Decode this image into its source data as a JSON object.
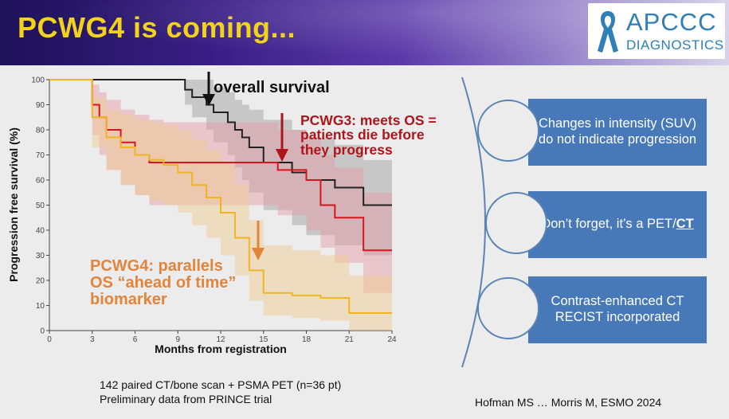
{
  "header": {
    "title": "PCWG4 is coming...",
    "logo_line1": "APCCC",
    "logo_line2": "DIAGNOSTICS"
  },
  "chart_data": {
    "type": "line",
    "xlabel": "Months from registration",
    "ylabel": "Progression free survival (%)",
    "xlim": [
      0,
      24
    ],
    "ylim": [
      0,
      100
    ],
    "xticks": [
      0,
      3,
      6,
      9,
      12,
      15,
      18,
      21,
      24
    ],
    "yticks": [
      0,
      10,
      20,
      30,
      40,
      50,
      60,
      70,
      80,
      90,
      100
    ],
    "series": [
      {
        "color": "#222222",
        "band": "#9c9c9c",
        "x": [
          0,
          9,
          9.5,
          10,
          11,
          11.5,
          12.5,
          13,
          13.5,
          14,
          15,
          16,
          17,
          18,
          20,
          22,
          24
        ],
        "y": [
          100,
          100,
          96,
          93,
          90,
          87,
          83,
          80,
          77,
          73,
          67,
          67,
          63,
          60,
          57,
          50,
          50
        ],
        "lo": [
          100,
          100,
          90,
          85,
          80,
          75,
          70,
          65,
          60,
          55,
          48,
          48,
          42,
          38,
          34,
          30,
          30
        ],
        "hi": [
          100,
          100,
          100,
          100,
          100,
          97,
          95,
          92,
          90,
          88,
          84,
          84,
          80,
          77,
          74,
          68,
          68
        ]
      },
      {
        "color": "#d9141c",
        "band": "#e69aa3",
        "x": [
          0,
          2.5,
          3,
          3.5,
          4,
          5,
          6,
          7,
          8,
          10,
          12,
          14,
          16,
          18,
          19,
          20,
          22,
          24
        ],
        "y": [
          100,
          100,
          90,
          85,
          80,
          75,
          70,
          67,
          67,
          67,
          67,
          67,
          64,
          60,
          50,
          45,
          32,
          32
        ],
        "lo": [
          100,
          100,
          78,
          70,
          64,
          58,
          54,
          50,
          50,
          50,
          50,
          50,
          46,
          40,
          33,
          27,
          15,
          15
        ],
        "hi": [
          100,
          100,
          98,
          95,
          92,
          88,
          86,
          84,
          83,
          83,
          83,
          83,
          80,
          77,
          70,
          65,
          55,
          55
        ]
      },
      {
        "color": "#f2b324",
        "band": "#f0c98c",
        "x": [
          0,
          2.5,
          3,
          4,
          5,
          6,
          7,
          8,
          9,
          10,
          11,
          12,
          13,
          14,
          15,
          17,
          19,
          21,
          24
        ],
        "y": [
          100,
          100,
          85,
          77,
          73,
          70,
          68,
          66,
          63,
          58,
          53,
          47,
          37,
          24,
          15,
          14,
          13,
          7,
          7
        ],
        "lo": [
          100,
          100,
          73,
          64,
          58,
          54,
          52,
          50,
          47,
          42,
          37,
          30,
          22,
          12,
          6,
          5,
          4,
          0,
          0
        ],
        "hi": [
          100,
          100,
          93,
          88,
          86,
          84,
          83,
          82,
          80,
          76,
          72,
          67,
          58,
          44,
          34,
          32,
          30,
          22,
          22
        ]
      }
    ]
  },
  "annotations": {
    "os": "overall survival",
    "pcwg3_l1": "PCWG3: meets OS =",
    "pcwg3_l2": "patients die before",
    "pcwg3_l3": "they progress",
    "pcwg4_l1": "PCWG4: parallels",
    "pcwg4_l2": "OS “ahead of time”",
    "pcwg4_l3": "biomarker"
  },
  "panel": {
    "item1": "Changes in intensity (SUV) do not indicate progression",
    "item2_pre": "Don’t forget, it’s a PET/",
    "item2_ct": "CT",
    "item3": "Contrast-enhanced CT RECIST incorporated"
  },
  "footer": {
    "line1": "142 paired CT/bone scan + PSMA PET (n=36 pt)",
    "line2": "Preliminary data from PRINCE trial",
    "citation": "Hofman MS … Morris M, ESMO 2024"
  }
}
